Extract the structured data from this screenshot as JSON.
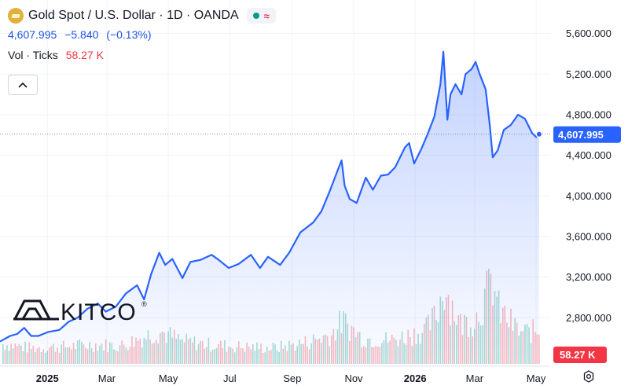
{
  "legend": {
    "symbol_title": "Gold Spot / U.S. Dollar · 1D · OANDA",
    "last": "4,607.995",
    "change": "−5.840",
    "change_pct": "(−0.13%)",
    "volume_label": "Vol · Ticks",
    "volume_value": "58.27 K",
    "delay_badge": "≈"
  },
  "icons": {
    "symbol": "gold-bar-icon",
    "market_status": "market-open-dot-icon",
    "delay": "data-delay-icon",
    "collapse": "chevron-up-icon",
    "settings": "settings-icon"
  },
  "watermark": {
    "text": "KITCO",
    "mark": "®"
  },
  "price_label": "4,607.995",
  "volume_label": "58.27 K",
  "colors": {
    "line": "#2962ff",
    "area_top": "rgba(41,98,255,0.28)",
    "area_bottom": "rgba(41,98,255,0.02)",
    "vol_up": "rgba(8,153,129,0.35)",
    "vol_down": "rgba(242,54,69,0.35)",
    "price_badge": "#2962ff",
    "volume_badge": "#f23645",
    "grid": "#f0f3fa"
  },
  "chart_data": {
    "type": "area",
    "title": "Gold Spot / U.S. Dollar · 1D · OANDA",
    "y_axis_ticks": [
      2800,
      3200,
      3600,
      4000,
      4400,
      4800,
      5200,
      5600
    ],
    "y_axis_tick_labels": [
      "2,800.000",
      "3,200.000",
      "3,600.000",
      "4,000.000",
      "4,400.000",
      "4,800.000",
      "5,200.000",
      "5,600.000"
    ],
    "ylim": [
      2330,
      5930
    ],
    "x_axis_ticks": [
      {
        "label": "2025",
        "date": "2025-01-01",
        "bold": true
      },
      {
        "label": "Mar",
        "date": "2025-03-01"
      },
      {
        "label": "May",
        "date": "2025-05-01"
      },
      {
        "label": "Jul",
        "date": "2025-07-01"
      },
      {
        "label": "Sep",
        "date": "2025-09-01"
      },
      {
        "label": "Nov",
        "date": "2025-11-01"
      },
      {
        "label": "2026",
        "date": "2026-01-01",
        "bold": true
      },
      {
        "label": "Mar",
        "date": "2026-03-01"
      },
      {
        "label": "May",
        "date": "2026-05-01"
      }
    ],
    "xlim": [
      "2024-11-15",
      "2026-05-15"
    ],
    "grid": true,
    "series": [
      {
        "name": "Gold Spot / U.S. Dollar",
        "points": [
          {
            "date": "2024-11-15",
            "value": 2565
          },
          {
            "date": "2024-11-25",
            "value": 2620
          },
          {
            "date": "2024-12-02",
            "value": 2640
          },
          {
            "date": "2024-12-09",
            "value": 2700
          },
          {
            "date": "2024-12-16",
            "value": 2620
          },
          {
            "date": "2024-12-23",
            "value": 2620
          },
          {
            "date": "2025-01-02",
            "value": 2660
          },
          {
            "date": "2025-01-13",
            "value": 2680
          },
          {
            "date": "2025-01-22",
            "value": 2760
          },
          {
            "date": "2025-01-31",
            "value": 2800
          },
          {
            "date": "2025-02-10",
            "value": 2890
          },
          {
            "date": "2025-02-20",
            "value": 2940
          },
          {
            "date": "2025-02-28",
            "value": 2860
          },
          {
            "date": "2025-03-10",
            "value": 2910
          },
          {
            "date": "2025-03-20",
            "value": 3040
          },
          {
            "date": "2025-03-31",
            "value": 3120
          },
          {
            "date": "2025-04-07",
            "value": 2980
          },
          {
            "date": "2025-04-14",
            "value": 3230
          },
          {
            "date": "2025-04-22",
            "value": 3440
          },
          {
            "date": "2025-04-28",
            "value": 3320
          },
          {
            "date": "2025-05-05",
            "value": 3380
          },
          {
            "date": "2025-05-15",
            "value": 3190
          },
          {
            "date": "2025-05-23",
            "value": 3350
          },
          {
            "date": "2025-06-02",
            "value": 3370
          },
          {
            "date": "2025-06-13",
            "value": 3420
          },
          {
            "date": "2025-06-20",
            "value": 3370
          },
          {
            "date": "2025-06-30",
            "value": 3290
          },
          {
            "date": "2025-07-10",
            "value": 3330
          },
          {
            "date": "2025-07-22",
            "value": 3420
          },
          {
            "date": "2025-07-31",
            "value": 3290
          },
          {
            "date": "2025-08-08",
            "value": 3400
          },
          {
            "date": "2025-08-20",
            "value": 3320
          },
          {
            "date": "2025-08-29",
            "value": 3440
          },
          {
            "date": "2025-09-09",
            "value": 3640
          },
          {
            "date": "2025-09-22",
            "value": 3740
          },
          {
            "date": "2025-09-30",
            "value": 3850
          },
          {
            "date": "2025-10-08",
            "value": 4040
          },
          {
            "date": "2025-10-16",
            "value": 4250
          },
          {
            "date": "2025-10-20",
            "value": 4350
          },
          {
            "date": "2025-10-23",
            "value": 4100
          },
          {
            "date": "2025-10-28",
            "value": 3970
          },
          {
            "date": "2025-11-04",
            "value": 3930
          },
          {
            "date": "2025-11-13",
            "value": 4180
          },
          {
            "date": "2025-11-20",
            "value": 4060
          },
          {
            "date": "2025-11-28",
            "value": 4200
          },
          {
            "date": "2025-12-05",
            "value": 4210
          },
          {
            "date": "2025-12-12",
            "value": 4280
          },
          {
            "date": "2025-12-22",
            "value": 4480
          },
          {
            "date": "2025-12-26",
            "value": 4520
          },
          {
            "date": "2025-12-31",
            "value": 4320
          },
          {
            "date": "2026-01-07",
            "value": 4460
          },
          {
            "date": "2026-01-13",
            "value": 4600
          },
          {
            "date": "2026-01-20",
            "value": 4780
          },
          {
            "date": "2026-01-26",
            "value": 5100
          },
          {
            "date": "2026-01-29",
            "value": 5420
          },
          {
            "date": "2026-02-02",
            "value": 4750
          },
          {
            "date": "2026-02-05",
            "value": 5000
          },
          {
            "date": "2026-02-10",
            "value": 5100
          },
          {
            "date": "2026-02-16",
            "value": 5000
          },
          {
            "date": "2026-02-20",
            "value": 5200
          },
          {
            "date": "2026-02-26",
            "value": 5250
          },
          {
            "date": "2026-03-02",
            "value": 5320
          },
          {
            "date": "2026-03-06",
            "value": 5200
          },
          {
            "date": "2026-03-12",
            "value": 5050
          },
          {
            "date": "2026-03-16",
            "value": 4700
          },
          {
            "date": "2026-03-19",
            "value": 4380
          },
          {
            "date": "2026-03-24",
            "value": 4450
          },
          {
            "date": "2026-03-30",
            "value": 4650
          },
          {
            "date": "2026-04-06",
            "value": 4700
          },
          {
            "date": "2026-04-13",
            "value": 4800
          },
          {
            "date": "2026-04-20",
            "value": 4760
          },
          {
            "date": "2026-04-27",
            "value": 4620
          },
          {
            "date": "2026-05-01",
            "value": 4580
          },
          {
            "date": "2026-05-04",
            "value": 4608
          }
        ]
      },
      {
        "name": "Vol · Ticks",
        "note": "volume in thousands of ticks",
        "points": [
          {
            "date": "2024-11-20",
            "value": 35,
            "up": true
          },
          {
            "date": "2024-12-15",
            "value": 28,
            "up": false
          },
          {
            "date": "2025-01-15",
            "value": 30,
            "up": true
          },
          {
            "date": "2025-02-15",
            "value": 34,
            "up": true
          },
          {
            "date": "2025-03-15",
            "value": 32,
            "up": false
          },
          {
            "date": "2025-04-10",
            "value": 50,
            "up": true
          },
          {
            "date": "2025-04-22",
            "value": 58,
            "up": false
          },
          {
            "date": "2025-05-15",
            "value": 40,
            "up": false
          },
          {
            "date": "2025-06-15",
            "value": 33,
            "up": true
          },
          {
            "date": "2025-07-15",
            "value": 30,
            "up": false
          },
          {
            "date": "2025-08-15",
            "value": 28,
            "up": true
          },
          {
            "date": "2025-09-15",
            "value": 38,
            "up": true
          },
          {
            "date": "2025-10-10",
            "value": 52,
            "up": true
          },
          {
            "date": "2025-10-21",
            "value": 75,
            "up": false
          },
          {
            "date": "2025-11-10",
            "value": 45,
            "up": true
          },
          {
            "date": "2025-12-10",
            "value": 42,
            "up": true
          },
          {
            "date": "2026-01-12",
            "value": 60,
            "up": true
          },
          {
            "date": "2026-01-22",
            "value": 85,
            "up": true
          },
          {
            "date": "2026-01-30",
            "value": 140,
            "up": false
          },
          {
            "date": "2026-02-05",
            "value": 110,
            "up": true
          },
          {
            "date": "2026-02-15",
            "value": 70,
            "up": false
          },
          {
            "date": "2026-03-02",
            "value": 80,
            "up": true
          },
          {
            "date": "2026-03-19",
            "value": 145,
            "up": false
          },
          {
            "date": "2026-03-25",
            "value": 95,
            "up": true
          },
          {
            "date": "2026-04-15",
            "value": 55,
            "up": true
          },
          {
            "date": "2026-05-04",
            "value": 58,
            "up": false
          }
        ]
      }
    ],
    "last_value_label": "4,607.995",
    "last_volume_label": "58.27 K"
  }
}
